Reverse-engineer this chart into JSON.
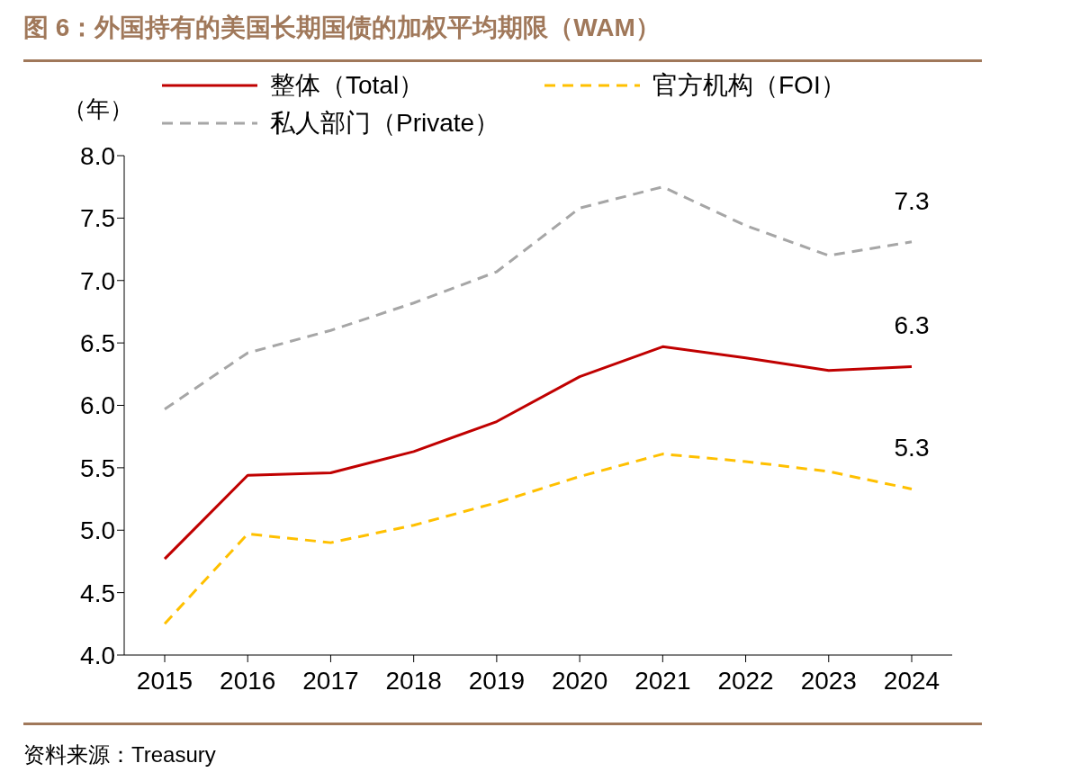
{
  "chart_data": {
    "type": "line",
    "title": "图 6：外国持有的美国长期国债的加权平均期限（WAM）",
    "ylabel": "（年）",
    "annotations": [
      "资料来源：Treasury"
    ],
    "categories": [
      "2015",
      "2016",
      "2017",
      "2018",
      "2019",
      "2020",
      "2021",
      "2022",
      "2023",
      "2024"
    ],
    "series": [
      {
        "name": "整体（Total）",
        "color": "#c00000",
        "line_style": "solid",
        "values": [
          4.77,
          5.44,
          5.46,
          5.63,
          5.87,
          6.23,
          6.47,
          6.38,
          6.28,
          6.31
        ],
        "value_labels": [
          null,
          null,
          null,
          null,
          null,
          null,
          null,
          null,
          null,
          "6.3"
        ]
      },
      {
        "name": "官方机构（FOI）",
        "color": "#ffc000",
        "line_style": "dashed",
        "values": [
          4.25,
          4.97,
          4.9,
          5.04,
          5.22,
          5.43,
          5.61,
          5.55,
          5.47,
          5.33
        ],
        "value_labels": [
          null,
          null,
          null,
          null,
          null,
          null,
          null,
          null,
          null,
          "5.3"
        ]
      },
      {
        "name": "私人部门（Private）",
        "color": "#a6a6a6",
        "line_style": "dashed",
        "values": [
          5.97,
          6.42,
          6.6,
          6.82,
          7.07,
          7.58,
          7.75,
          7.44,
          7.2,
          7.31
        ],
        "value_labels": [
          null,
          null,
          null,
          null,
          null,
          null,
          null,
          null,
          null,
          "7.3"
        ]
      }
    ],
    "ylim": [
      4.0,
      8.0
    ],
    "yticks": [
      {
        "value": 4,
        "label": "4.0"
      },
      {
        "value": 4.5,
        "label": "4.5"
      },
      {
        "value": 5,
        "label": "5.0"
      },
      {
        "value": 5.5,
        "label": "5.5"
      },
      {
        "value": 6,
        "label": "6.0"
      },
      {
        "value": 6.5,
        "label": "6.5"
      },
      {
        "value": 7,
        "label": "7.0"
      },
      {
        "value": 7.5,
        "label": "7.5"
      },
      {
        "value": 8,
        "label": "8.0"
      }
    ],
    "grid": false,
    "legend": "top",
    "marker": "none"
  }
}
